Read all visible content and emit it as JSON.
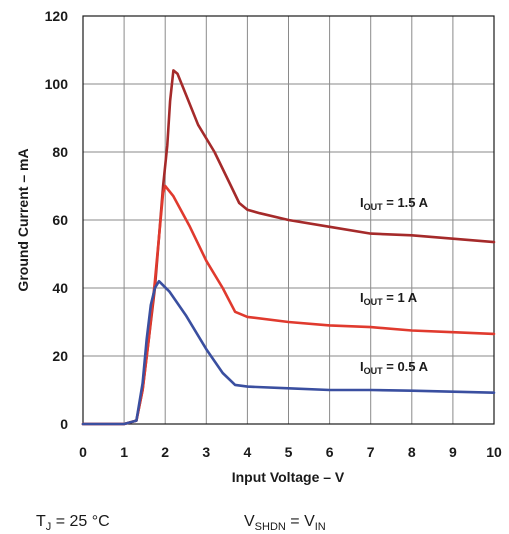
{
  "chart_data": {
    "type": "line",
    "title": "",
    "xlabel": "Input Voltage – V",
    "ylabel": "Ground Current – mA",
    "xlim": [
      0,
      10
    ],
    "ylim": [
      0,
      120
    ],
    "xticks": [
      "0",
      "1",
      "2",
      "3",
      "4",
      "5",
      "6",
      "7",
      "8",
      "9",
      "10"
    ],
    "yticks": [
      "0",
      "20",
      "40",
      "60",
      "80",
      "100",
      "120"
    ],
    "grid": true,
    "series": [
      {
        "name": "I_OUT = 1.5 A",
        "label_main": "I",
        "label_sub": "OUT",
        "label_value": " = 1.5 A",
        "color": "#a52a2a",
        "x": [
          0,
          0.5,
          1.0,
          1.3,
          1.45,
          1.6,
          1.75,
          1.85,
          1.95,
          2.05,
          2.12,
          2.2,
          2.3,
          2.5,
          2.8,
          3.2,
          3.6,
          3.8,
          4.0,
          4.3,
          5.0,
          6.0,
          7.0,
          8.0,
          9.0,
          10.0
        ],
        "y": [
          0,
          0,
          0,
          1,
          10,
          25,
          40,
          55,
          70,
          82,
          95,
          104,
          103,
          97,
          88,
          80,
          70,
          65,
          63,
          62,
          60,
          58,
          56,
          55.5,
          54.5,
          53.5
        ]
      },
      {
        "name": "I_OUT = 1 A",
        "label_main": "I",
        "label_sub": "OUT",
        "label_value": " = 1 A",
        "color": "#e03a2e",
        "x": [
          0,
          0.5,
          1.0,
          1.3,
          1.45,
          1.6,
          1.75,
          1.85,
          1.95,
          2.0,
          2.2,
          2.6,
          3.0,
          3.4,
          3.7,
          4.0,
          5.0,
          6.0,
          7.0,
          8.0,
          9.0,
          10.0
        ],
        "y": [
          0,
          0,
          0,
          1,
          10,
          25,
          42,
          55,
          68,
          70,
          67,
          58,
          48,
          40,
          33,
          31.5,
          30,
          29,
          28.5,
          27.5,
          27,
          26.5
        ]
      },
      {
        "name": "I_OUT = 0.5 A",
        "label_main": "I",
        "label_sub": "OUT",
        "label_value": " = 0.5 A",
        "color": "#3a4fa0",
        "x": [
          0,
          0.5,
          1.0,
          1.3,
          1.45,
          1.55,
          1.65,
          1.75,
          1.85,
          2.1,
          2.5,
          3.0,
          3.4,
          3.7,
          4.0,
          5.0,
          6.0,
          7.0,
          8.0,
          9.0,
          10.0
        ],
        "y": [
          0,
          0,
          0,
          1,
          12,
          25,
          35,
          40,
          42,
          39,
          32,
          22,
          15,
          11.5,
          11,
          10.5,
          10,
          10,
          9.8,
          9.5,
          9.2
        ]
      }
    ]
  },
  "conditions": {
    "tj_main": "T",
    "tj_sub": "J",
    "tj_value": " = 25 °C",
    "vshdn_main": "V",
    "vshdn_sub": "SHDN",
    "vshdn_eq": " = V",
    "vin_sub": "IN"
  }
}
